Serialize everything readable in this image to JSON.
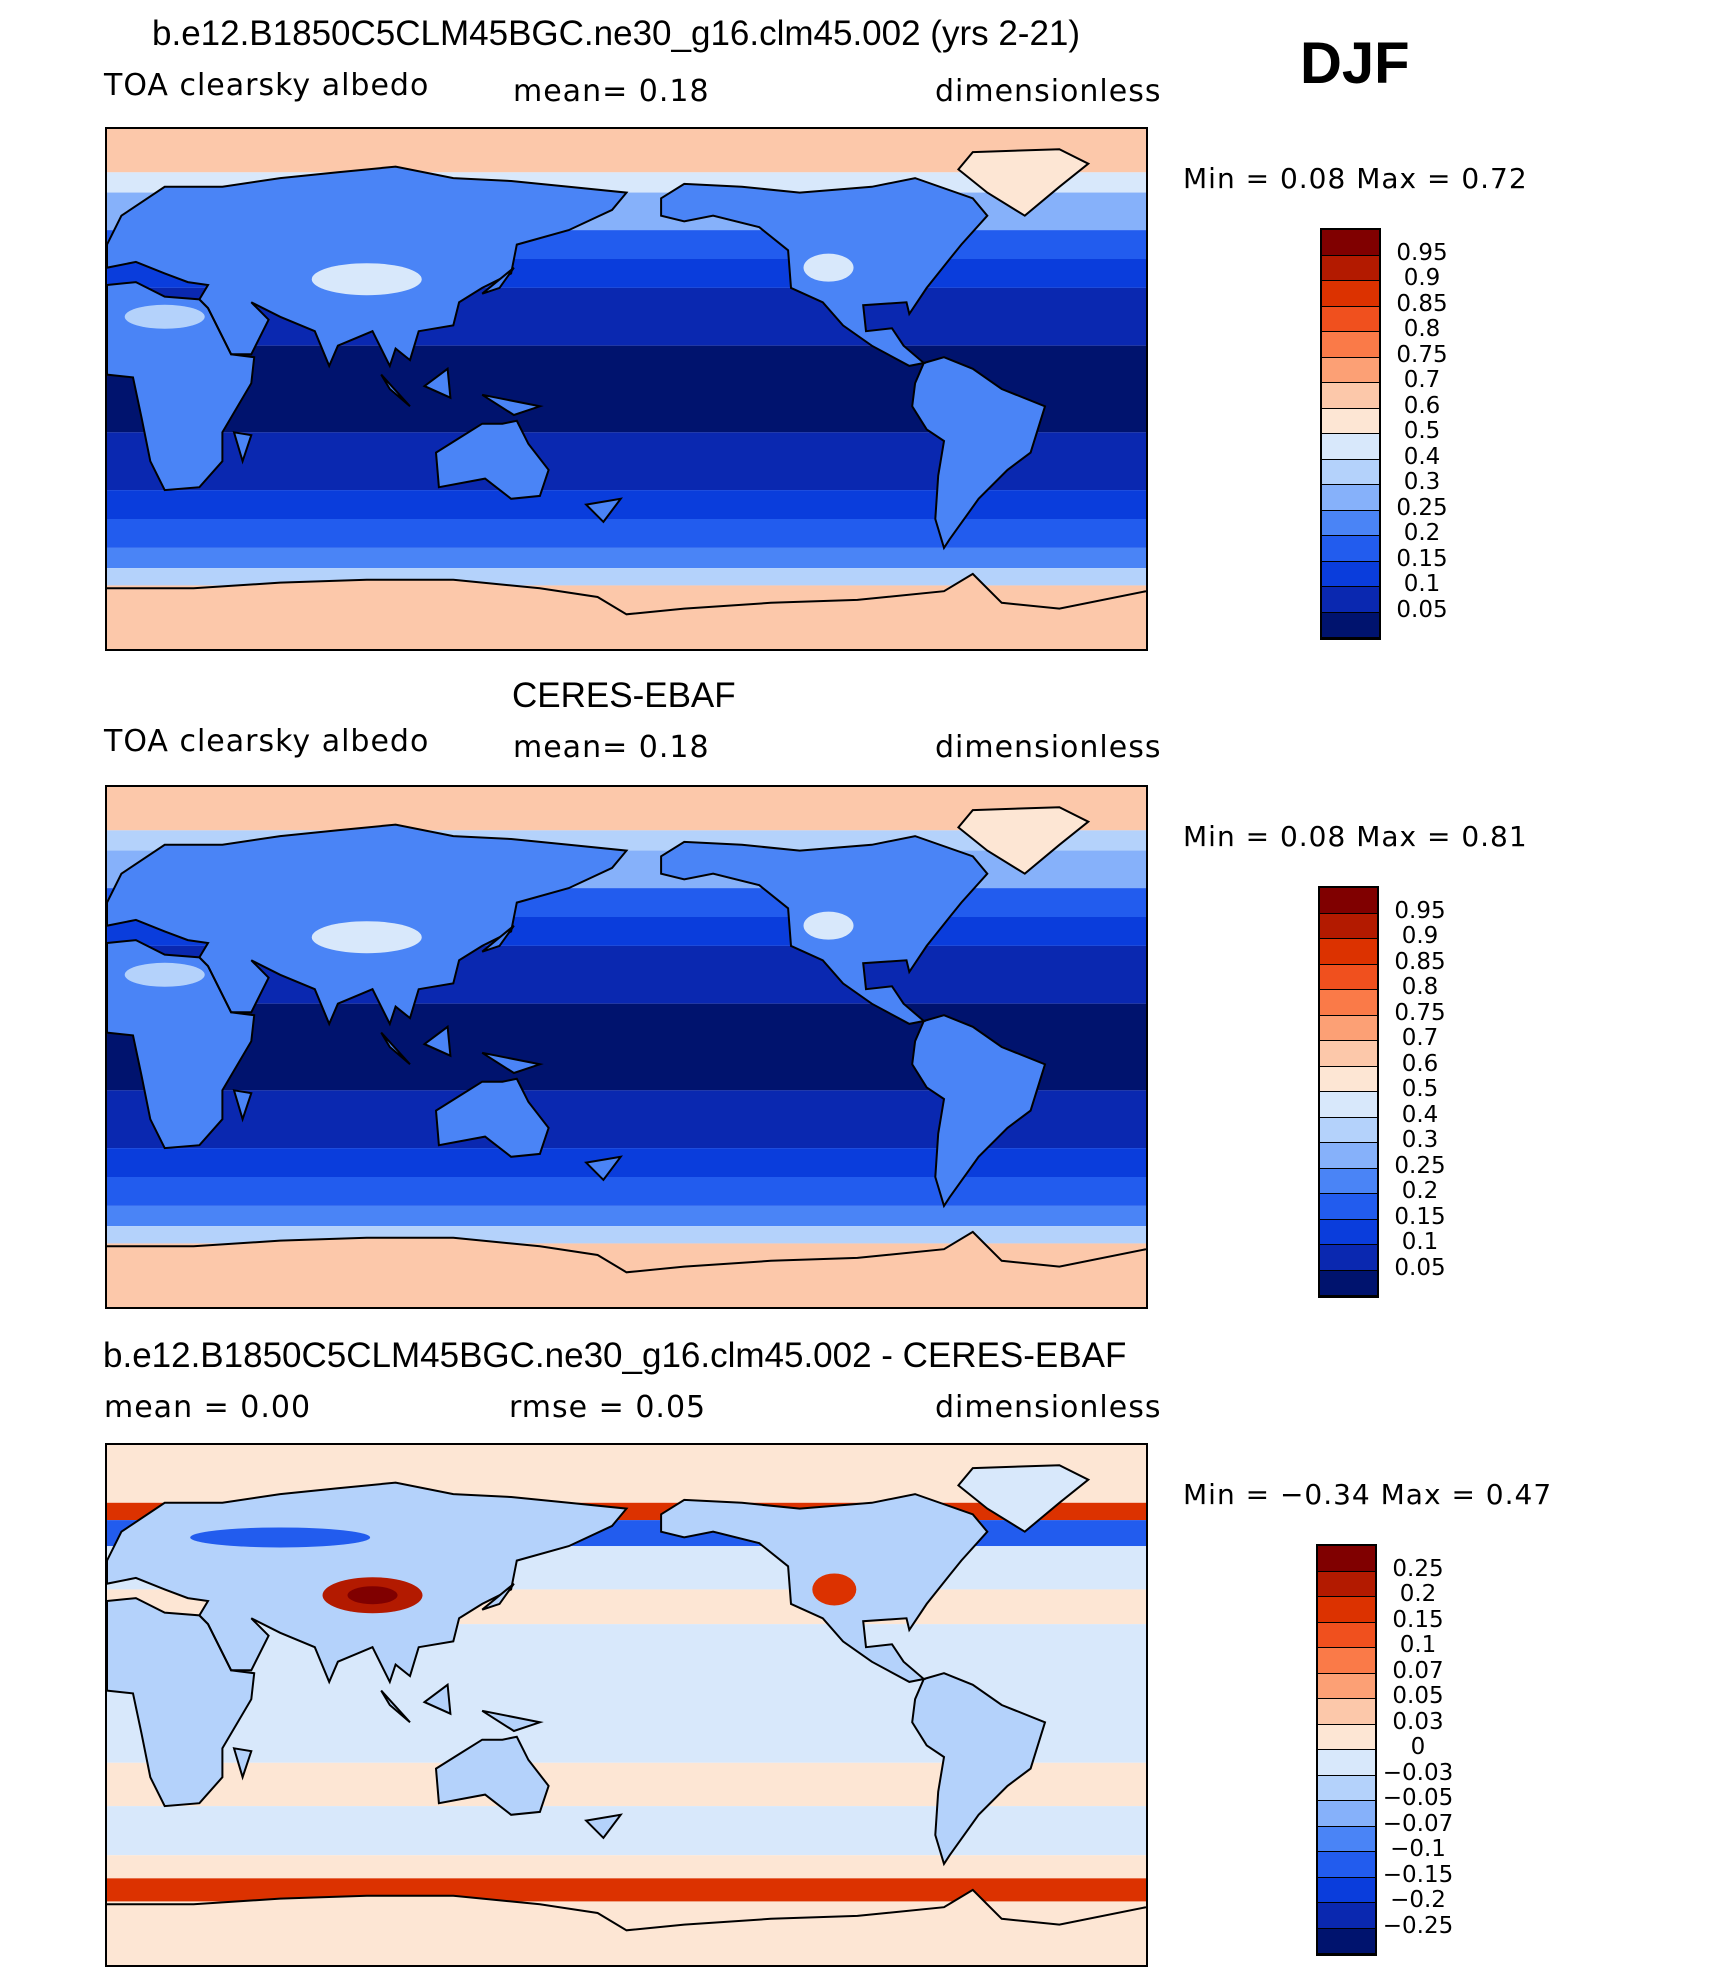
{
  "season": "DJF",
  "panels": [
    {
      "title": "b.e12.B1850C5CLM45BGC.ne30_g16.clm45.002 (yrs 2-21)",
      "left_label": "TOA clearsky albedo",
      "center_label": "mean=     0.18",
      "right_label": "dimensionless",
      "minmax": "Min =      0.08  Max =      0.72",
      "levels": [
        "0.95",
        "0.9",
        "0.85",
        "0.8",
        "0.75",
        "0.7",
        "0.6",
        "0.5",
        "0.4",
        "0.3",
        "0.25",
        "0.2",
        "0.15",
        "0.1",
        "0.05"
      ],
      "colors": [
        "#800000",
        "#b31a00",
        "#dc3200",
        "#f0501e",
        "#fa7a48",
        "#fca075",
        "#fcc8aa",
        "#fde6d4",
        "#d8e8fb",
        "#b4d2fb",
        "#86b1fa",
        "#4a84f6",
        "#225cee",
        "#0a3ddc",
        "#0a28b0",
        "#00136e"
      ],
      "map_kind": "model"
    },
    {
      "title": "CERES-EBAF",
      "left_label": "TOA clearsky albedo",
      "center_label": "mean=     0.18",
      "right_label": "dimensionless",
      "minmax": "Min =      0.08  Max =      0.81",
      "levels": [
        "0.95",
        "0.9",
        "0.85",
        "0.8",
        "0.75",
        "0.7",
        "0.6",
        "0.5",
        "0.4",
        "0.3",
        "0.25",
        "0.2",
        "0.15",
        "0.1",
        "0.05"
      ],
      "colors": [
        "#800000",
        "#b31a00",
        "#dc3200",
        "#f0501e",
        "#fa7a48",
        "#fca075",
        "#fcc8aa",
        "#fde6d4",
        "#d8e8fb",
        "#b4d2fb",
        "#86b1fa",
        "#4a84f6",
        "#225cee",
        "#0a3ddc",
        "#0a28b0",
        "#00136e"
      ],
      "map_kind": "obs"
    },
    {
      "title": "b.e12.B1850C5CLM45BGC.ne30_g16.clm45.002 - CERES-EBAF",
      "left_label": "mean  =      0.00",
      "center_label": "rmse  =      0.05",
      "right_label": "dimensionless",
      "minmax": "Min =    −0.34  Max =      0.47",
      "levels": [
        "0.25",
        "0.2",
        "0.15",
        "0.1",
        "0.07",
        "0.05",
        "0.03",
        "0",
        "−0.03",
        "−0.05",
        "−0.07",
        "−0.1",
        "−0.15",
        "−0.2",
        "−0.25"
      ],
      "colors": [
        "#800000",
        "#b31a00",
        "#dc3200",
        "#f0501e",
        "#fa7a48",
        "#fca075",
        "#fcc8aa",
        "#fde6d4",
        "#d8e8fb",
        "#b4d2fb",
        "#86b1fa",
        "#4a84f6",
        "#225cee",
        "#0a3ddc",
        "#0a28b0",
        "#00136e"
      ],
      "map_kind": "diff"
    }
  ]
}
